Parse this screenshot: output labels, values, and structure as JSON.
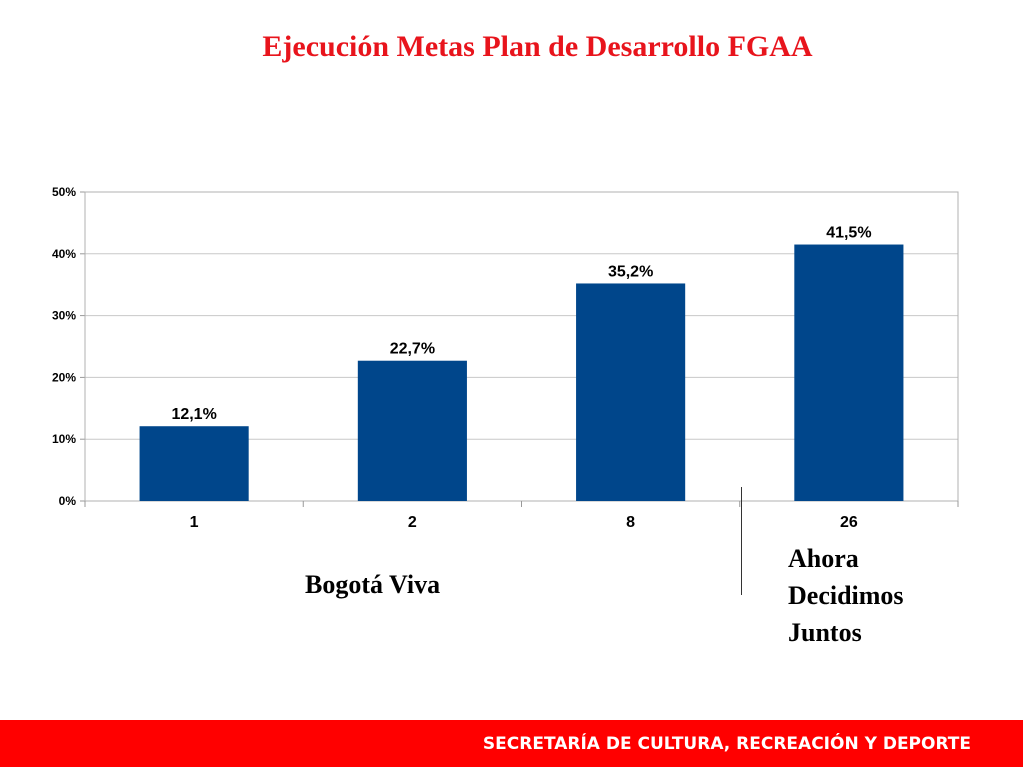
{
  "title": "Ejecución Metas Plan de Desarrollo FGAA",
  "chart_data": {
    "type": "bar",
    "categories": [
      "1",
      "2",
      "8",
      "26"
    ],
    "values": [
      12.1,
      22.7,
      35.2,
      41.5
    ],
    "data_labels": [
      "12,1%",
      "22,7%",
      "35,2%",
      "41,5%"
    ],
    "y_ticks": [
      0,
      10,
      20,
      30,
      40,
      50
    ],
    "y_tick_labels": [
      "0%",
      "10%",
      "20%",
      "30%",
      "40%",
      "50%"
    ],
    "ylim": [
      0,
      50
    ],
    "grid": true,
    "bar_color": "#00468b",
    "xlabel": "",
    "ylabel": ""
  },
  "groups": {
    "left": "Bogotá Viva",
    "right": [
      "Ahora",
      "Decidimos",
      "Juntos"
    ]
  },
  "footer": {
    "text": "SECRETARÍA DE CULTURA, RECREACIÓN Y DEPORTE",
    "color": "#ff0000"
  }
}
